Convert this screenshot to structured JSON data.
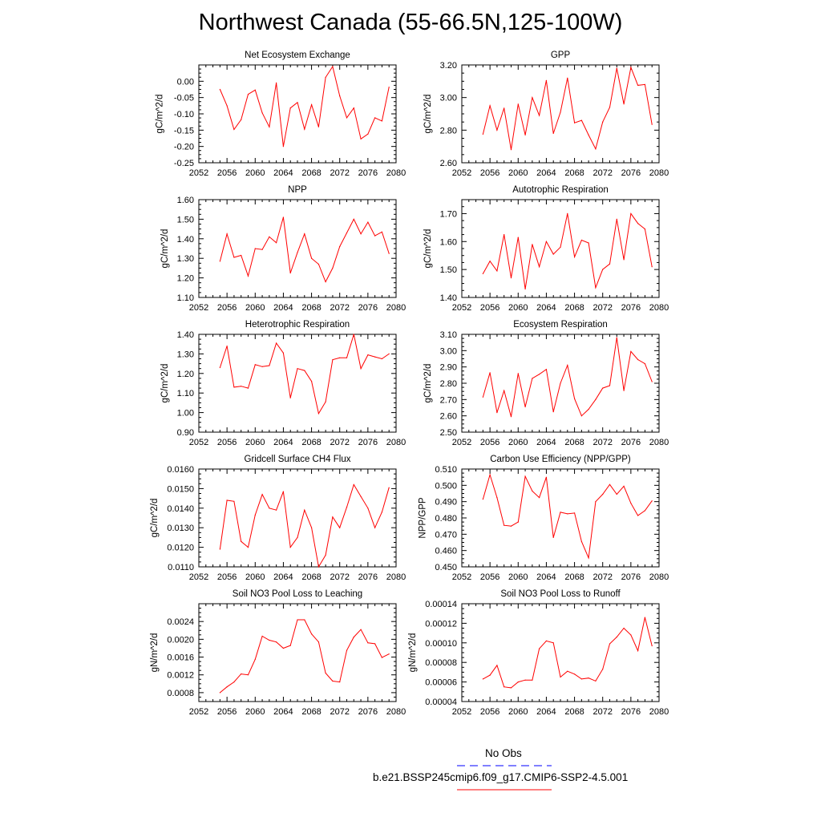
{
  "title": "Northwest Canada (55-66.5N,125-100W)",
  "colors": {
    "model_line": "#ff0000",
    "obs_line": "#0000ff",
    "axis": "#000000"
  },
  "legend": {
    "obs_label": "No Obs",
    "model_label": "b.e21.BSSP245cmip6.f09_g17.CMIP6-SSP2-4.5.001"
  },
  "chart_data": [
    {
      "type": "line",
      "title": "Net Ecosystem Exchange",
      "xlabel": "",
      "ylabel": "gC/m^2/d",
      "xlim": [
        2052,
        2080
      ],
      "xticks": [
        2052,
        2056,
        2060,
        2064,
        2068,
        2072,
        2076,
        2080
      ],
      "ylim": [
        -0.25,
        0.05
      ],
      "yticks": [
        -0.25,
        -0.2,
        -0.15,
        -0.1,
        -0.05,
        0.0
      ],
      "ytick_labels": [
        "-0.25",
        "-0.20",
        "-0.15",
        "-0.10",
        "-0.05",
        "0.00"
      ],
      "series": [
        {
          "x": [
            2055,
            2056,
            2057,
            2058,
            2059,
            2060,
            2061,
            2062,
            2063,
            2064,
            2065,
            2066,
            2067,
            2068,
            2069,
            2070,
            2071,
            2072,
            2073,
            2074,
            2075,
            2076,
            2077,
            2078,
            2079
          ],
          "values": [
            -0.025,
            -0.075,
            -0.148,
            -0.118,
            -0.04,
            -0.027,
            -0.097,
            -0.14,
            -0.005,
            -0.2,
            -0.082,
            -0.065,
            -0.147,
            -0.072,
            -0.14,
            0.012,
            0.045,
            -0.045,
            -0.112,
            -0.082,
            -0.177,
            -0.162,
            -0.112,
            -0.122,
            -0.018
          ]
        }
      ]
    },
    {
      "type": "line",
      "title": "GPP",
      "xlabel": "",
      "ylabel": "gC/m^2/d",
      "xlim": [
        2052,
        2080
      ],
      "xticks": [
        2052,
        2056,
        2060,
        2064,
        2068,
        2072,
        2076,
        2080
      ],
      "ylim": [
        2.6,
        3.2
      ],
      "yticks": [
        2.6,
        2.8,
        3.0,
        3.2
      ],
      "ytick_labels": [
        "2.60",
        "2.80",
        "3.00",
        "3.20"
      ],
      "series": [
        {
          "x": [
            2055,
            2056,
            2057,
            2058,
            2059,
            2060,
            2061,
            2062,
            2063,
            2064,
            2065,
            2066,
            2067,
            2068,
            2069,
            2070,
            2071,
            2072,
            2073,
            2074,
            2075,
            2076,
            2077,
            2078,
            2079
          ],
          "values": [
            2.775,
            2.95,
            2.8,
            2.935,
            2.68,
            2.96,
            2.77,
            3.0,
            2.89,
            3.105,
            2.78,
            2.91,
            3.12,
            2.845,
            2.86,
            2.77,
            2.685,
            2.85,
            2.94,
            3.18,
            2.96,
            3.185,
            3.075,
            3.08,
            2.835
          ]
        }
      ]
    },
    {
      "type": "line",
      "title": "NPP",
      "xlabel": "",
      "ylabel": "gC/m^2/d",
      "xlim": [
        2052,
        2080
      ],
      "xticks": [
        2052,
        2056,
        2060,
        2064,
        2068,
        2072,
        2076,
        2080
      ],
      "ylim": [
        1.1,
        1.6
      ],
      "yticks": [
        1.1,
        1.2,
        1.3,
        1.4,
        1.5,
        1.6
      ],
      "ytick_labels": [
        "1.10",
        "1.20",
        "1.30",
        "1.40",
        "1.50",
        "1.60"
      ],
      "series": [
        {
          "x": [
            2055,
            2056,
            2057,
            2058,
            2059,
            2060,
            2061,
            2062,
            2063,
            2064,
            2065,
            2066,
            2067,
            2068,
            2069,
            2070,
            2071,
            2072,
            2073,
            2074,
            2075,
            2076,
            2077,
            2078,
            2079
          ],
          "values": [
            1.285,
            1.425,
            1.305,
            1.315,
            1.21,
            1.35,
            1.345,
            1.41,
            1.38,
            1.51,
            1.225,
            1.33,
            1.425,
            1.3,
            1.27,
            1.18,
            1.25,
            1.36,
            1.43,
            1.5,
            1.425,
            1.485,
            1.415,
            1.435,
            1.325
          ]
        }
      ]
    },
    {
      "type": "line",
      "title": "Autotrophic Respiration",
      "xlabel": "",
      "ylabel": "gC/m^2/d",
      "xlim": [
        2052,
        2080
      ],
      "xticks": [
        2052,
        2056,
        2060,
        2064,
        2068,
        2072,
        2076,
        2080
      ],
      "ylim": [
        1.4,
        1.75
      ],
      "yticks": [
        1.4,
        1.5,
        1.6,
        1.7
      ],
      "ytick_labels": [
        "1.40",
        "1.50",
        "1.60",
        "1.70"
      ],
      "series": [
        {
          "x": [
            2055,
            2056,
            2057,
            2058,
            2059,
            2060,
            2061,
            2062,
            2063,
            2064,
            2065,
            2066,
            2067,
            2068,
            2069,
            2070,
            2071,
            2072,
            2073,
            2074,
            2075,
            2076,
            2077,
            2078,
            2079
          ],
          "values": [
            1.485,
            1.53,
            1.495,
            1.625,
            1.47,
            1.615,
            1.43,
            1.59,
            1.51,
            1.6,
            1.555,
            1.58,
            1.7,
            1.545,
            1.605,
            1.595,
            1.435,
            1.5,
            1.52,
            1.68,
            1.535,
            1.7,
            1.665,
            1.645,
            1.51
          ]
        }
      ]
    },
    {
      "type": "line",
      "title": "Heterotrophic Respiration",
      "xlabel": "",
      "ylabel": "gC/m^2/d",
      "xlim": [
        2052,
        2080
      ],
      "xticks": [
        2052,
        2056,
        2060,
        2064,
        2068,
        2072,
        2076,
        2080
      ],
      "ylim": [
        0.9,
        1.4
      ],
      "yticks": [
        0.9,
        1.0,
        1.1,
        1.2,
        1.3,
        1.4
      ],
      "ytick_labels": [
        "0.90",
        "1.00",
        "1.10",
        "1.20",
        "1.30",
        "1.40"
      ],
      "series": [
        {
          "x": [
            2055,
            2056,
            2057,
            2058,
            2059,
            2060,
            2061,
            2062,
            2063,
            2064,
            2065,
            2066,
            2067,
            2068,
            2069,
            2070,
            2071,
            2072,
            2073,
            2074,
            2075,
            2076,
            2077,
            2078,
            2079
          ],
          "values": [
            1.23,
            1.34,
            1.13,
            1.135,
            1.125,
            1.245,
            1.235,
            1.24,
            1.355,
            1.305,
            1.075,
            1.225,
            1.215,
            1.16,
            0.995,
            1.055,
            1.27,
            1.28,
            1.28,
            1.4,
            1.225,
            1.295,
            1.285,
            1.275,
            1.3
          ]
        }
      ]
    },
    {
      "type": "line",
      "title": "Ecosystem Respiration",
      "xlabel": "",
      "ylabel": "gC/m^2/d",
      "xlim": [
        2052,
        2080
      ],
      "xticks": [
        2052,
        2056,
        2060,
        2064,
        2068,
        2072,
        2076,
        2080
      ],
      "ylim": [
        2.5,
        3.1
      ],
      "yticks": [
        2.5,
        2.6,
        2.7,
        2.8,
        2.9,
        3.0,
        3.1
      ],
      "ytick_labels": [
        "2.50",
        "2.60",
        "2.70",
        "2.80",
        "2.90",
        "3.00",
        "3.10"
      ],
      "series": [
        {
          "x": [
            2055,
            2056,
            2057,
            2058,
            2059,
            2060,
            2061,
            2062,
            2063,
            2064,
            2065,
            2066,
            2067,
            2068,
            2069,
            2070,
            2071,
            2072,
            2073,
            2074,
            2075,
            2076,
            2077,
            2078,
            2079
          ],
          "values": [
            2.715,
            2.865,
            2.62,
            2.755,
            2.595,
            2.86,
            2.655,
            2.83,
            2.855,
            2.885,
            2.625,
            2.8,
            2.91,
            2.705,
            2.6,
            2.64,
            2.7,
            2.77,
            2.785,
            3.08,
            2.755,
            2.995,
            2.945,
            2.92,
            2.81
          ]
        }
      ]
    },
    {
      "type": "line",
      "title": "Gridcell Surface CH4 Flux",
      "xlabel": "",
      "ylabel": "gC/m^2/d",
      "xlim": [
        2052,
        2080
      ],
      "xticks": [
        2052,
        2056,
        2060,
        2064,
        2068,
        2072,
        2076,
        2080
      ],
      "ylim": [
        0.011,
        0.016
      ],
      "yticks": [
        0.011,
        0.012,
        0.013,
        0.014,
        0.015,
        0.016
      ],
      "ytick_labels": [
        "0.0110",
        "0.0120",
        "0.0130",
        "0.0140",
        "0.0150",
        "0.0160"
      ],
      "series": [
        {
          "x": [
            2055,
            2056,
            2057,
            2058,
            2059,
            2060,
            2061,
            2062,
            2063,
            2064,
            2065,
            2066,
            2067,
            2068,
            2069,
            2070,
            2071,
            2072,
            2073,
            2074,
            2075,
            2076,
            2077,
            2078,
            2079
          ],
          "values": [
            0.0119,
            0.0144,
            0.01435,
            0.0123,
            0.012,
            0.01365,
            0.0147,
            0.014,
            0.0139,
            0.01485,
            0.012,
            0.0125,
            0.0139,
            0.013,
            0.011,
            0.0116,
            0.01355,
            0.013,
            0.01405,
            0.0152,
            0.0146,
            0.014,
            0.013,
            0.0138,
            0.01505
          ]
        }
      ]
    },
    {
      "type": "line",
      "title": "Carbon Use Efficiency (NPP/GPP)",
      "xlabel": "",
      "ylabel": "NPP/GPP",
      "xlim": [
        2052,
        2080
      ],
      "xticks": [
        2052,
        2056,
        2060,
        2064,
        2068,
        2072,
        2076,
        2080
      ],
      "ylim": [
        0.45,
        0.51
      ],
      "yticks": [
        0.45,
        0.46,
        0.47,
        0.48,
        0.49,
        0.5,
        0.51
      ],
      "ytick_labels": [
        "0.450",
        "0.460",
        "0.470",
        "0.480",
        "0.490",
        "0.500",
        "0.510"
      ],
      "series": [
        {
          "x": [
            2055,
            2056,
            2057,
            2058,
            2059,
            2060,
            2061,
            2062,
            2063,
            2064,
            2065,
            2066,
            2067,
            2068,
            2069,
            2070,
            2071,
            2072,
            2073,
            2074,
            2075,
            2076,
            2077,
            2078,
            2079
          ],
          "values": [
            0.4915,
            0.5065,
            0.4925,
            0.4755,
            0.475,
            0.4775,
            0.5055,
            0.4965,
            0.4925,
            0.505,
            0.468,
            0.4835,
            0.4825,
            0.483,
            0.4655,
            0.4555,
            0.49,
            0.4945,
            0.5005,
            0.4945,
            0.4995,
            0.489,
            0.4815,
            0.4845,
            0.4905
          ]
        }
      ]
    },
    {
      "type": "line",
      "title": "Soil NO3 Pool Loss to Leaching",
      "xlabel": "",
      "ylabel": "gN/m^2/d",
      "xlim": [
        2052,
        2080
      ],
      "xticks": [
        2052,
        2056,
        2060,
        2064,
        2068,
        2072,
        2076,
        2080
      ],
      "ylim": [
        0.0006,
        0.0028
      ],
      "yticks": [
        0.0008,
        0.0012,
        0.0016,
        0.002,
        0.0024
      ],
      "ytick_labels": [
        "0.0008",
        "0.0012",
        "0.0016",
        "0.0020",
        "0.0024"
      ],
      "series": [
        {
          "x": [
            2055,
            2056,
            2057,
            2058,
            2059,
            2060,
            2061,
            2062,
            2063,
            2064,
            2065,
            2066,
            2067,
            2068,
            2069,
            2070,
            2071,
            2072,
            2073,
            2074,
            2075,
            2076,
            2077,
            2078,
            2079
          ],
          "values": [
            0.0008,
            0.00093,
            0.00104,
            0.00122,
            0.0012,
            0.00155,
            0.00207,
            0.00198,
            0.00194,
            0.0018,
            0.00186,
            0.00244,
            0.00244,
            0.00212,
            0.00194,
            0.00124,
            0.00106,
            0.00104,
            0.00175,
            0.00205,
            0.00222,
            0.00192,
            0.0019,
            0.00159,
            0.00167
          ]
        }
      ]
    },
    {
      "type": "line",
      "title": "Soil NO3 Pool Loss to Runoff",
      "xlabel": "",
      "ylabel": "gN/m^2/d",
      "xlim": [
        2052,
        2080
      ],
      "xticks": [
        2052,
        2056,
        2060,
        2064,
        2068,
        2072,
        2076,
        2080
      ],
      "ylim": [
        4e-05,
        0.00014
      ],
      "yticks": [
        4e-05,
        6e-05,
        8e-05,
        0.0001,
        0.00012,
        0.00014
      ],
      "ytick_labels": [
        "0.00004",
        "0.00006",
        "0.00008",
        "0.00010",
        "0.00012",
        "0.00014"
      ],
      "series": [
        {
          "x": [
            2055,
            2056,
            2057,
            2058,
            2059,
            2060,
            2061,
            2062,
            2063,
            2064,
            2065,
            2066,
            2067,
            2068,
            2069,
            2070,
            2071,
            2072,
            2073,
            2074,
            2075,
            2076,
            2077,
            2078,
            2079
          ],
          "values": [
            6.3e-05,
            6.7e-05,
            7.7e-05,
            5.5e-05,
            5.4e-05,
            6e-05,
            6.2e-05,
            6.2e-05,
            9.4e-05,
            0.000102,
            0.0001,
            6.5e-05,
            7.1e-05,
            6.8e-05,
            6.3e-05,
            6.4e-05,
            6.1e-05,
            7.3e-05,
            9.9e-05,
            0.000106,
            0.000115,
            0.000108,
            9.2e-05,
            0.000126,
            9.7e-05
          ]
        }
      ]
    }
  ]
}
